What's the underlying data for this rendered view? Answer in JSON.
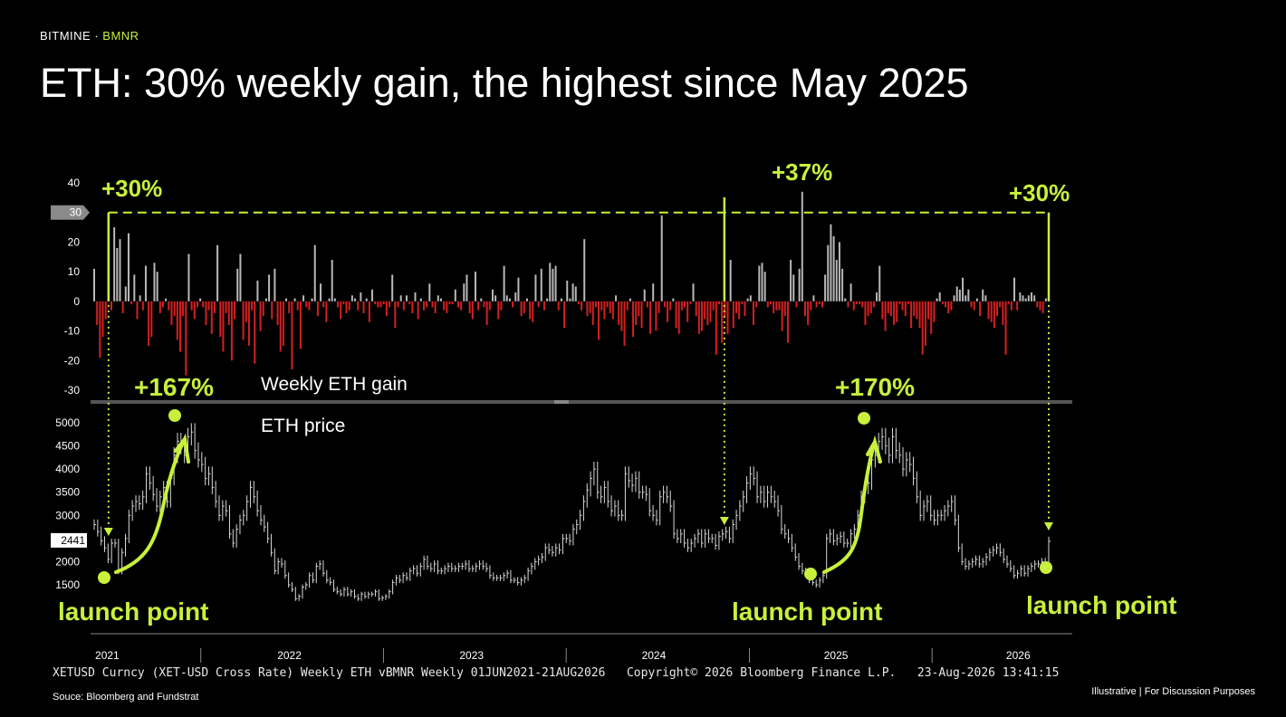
{
  "header": {
    "brand_primary": "BITMINE",
    "brand_separator": " · ",
    "brand_ticker": "BMNR",
    "title": "ETH: 30% weekly gain, the highest since May 2025"
  },
  "footer": {
    "bloomberg_line_left": "XETUSD Curncy (XET-USD Cross Rate) Weekly ETH vBMNR Weekly 01JUN2021-21AUG2026",
    "bloomberg_copyright": "Copyright© 2026 Bloomberg Finance L.P.",
    "bloomberg_timestamp": "23-Aug-2026 13:41:15",
    "source": "Souce: Bloomberg and Fundstrat",
    "disclaimer": "Illustrative  |  For Discussion Purposes"
  },
  "colors": {
    "background": "#000000",
    "accent": "#c8f03c",
    "gain_bar": "#b8b8b8",
    "loss_bar": "#d42020",
    "price_line": "#d8d8d8",
    "divider": "#555555"
  },
  "chart_data": [
    {
      "type": "bar",
      "panel_label": "Weekly ETH gain",
      "ylim": [
        -30,
        40
      ],
      "yticks": [
        40,
        30,
        20,
        10,
        0,
        -10,
        -20,
        -30
      ],
      "highlight_tick": "30",
      "x_range": [
        "2021-06-01",
        "2026-08-21"
      ],
      "series": [
        {
          "values": [
            11,
            -8,
            -19,
            -12,
            -6,
            30,
            -3,
            25,
            18,
            21,
            -4,
            5,
            23,
            -1,
            9,
            -6,
            2,
            -3,
            12,
            -15,
            -12,
            13,
            10,
            -4,
            -2,
            1,
            -3,
            -8,
            -5,
            -13,
            -17,
            -5,
            -25,
            16,
            -3,
            -6,
            -2,
            1,
            -2,
            -8,
            -3,
            -11,
            -4,
            19,
            -12,
            -17,
            -4,
            -8,
            -20,
            -6,
            11,
            16,
            -13,
            -7,
            -15,
            -3,
            -21,
            7,
            -10,
            -5,
            1,
            9,
            -6,
            11,
            -8,
            -17,
            -15,
            1,
            -4,
            -23,
            1,
            -3,
            -16,
            2,
            -2,
            -3,
            1,
            19,
            -5,
            6,
            -2,
            -7,
            1,
            14,
            1,
            -2,
            -6,
            -1,
            -4,
            -3,
            2,
            1,
            -3,
            3,
            -4,
            1,
            -7,
            4,
            -1,
            -2,
            -2,
            -1,
            -5,
            -2,
            9,
            -9,
            -2,
            2,
            -3,
            2,
            -1,
            -4,
            3,
            -6,
            1,
            -3,
            -2,
            6,
            -2,
            -4,
            2,
            1,
            -3,
            -4,
            -1,
            -1,
            4,
            -2,
            -3,
            6,
            9,
            -4,
            -6,
            10,
            -3,
            1,
            -2,
            -8,
            -3,
            4,
            2,
            -6,
            -3,
            12,
            2,
            1,
            -2,
            3,
            8,
            -5,
            -4,
            1,
            -6,
            -7,
            9,
            -2,
            11,
            -3,
            1,
            13,
            11,
            12,
            -3,
            1,
            -9,
            7,
            1,
            6,
            5,
            -1,
            -3,
            21,
            -5,
            -4,
            -8,
            -2,
            -13,
            -3,
            -6,
            -2,
            -4,
            -6,
            2,
            -8,
            -10,
            -15,
            -3,
            1,
            -12,
            -8,
            -5,
            -9,
            4,
            -2,
            -11,
            6,
            -10,
            -4,
            29,
            -2,
            -7,
            -3,
            1,
            -9,
            -11,
            -3,
            -2,
            -7,
            -1,
            6,
            -5,
            -11,
            -10,
            -6,
            -8,
            -7,
            -3,
            -18,
            -1,
            -14,
            -5,
            -11,
            14,
            -9,
            -4,
            -6,
            -1,
            -5,
            1,
            2,
            -8,
            -2,
            12,
            13,
            10,
            -2,
            -1,
            -4,
            -3,
            -3,
            -10,
            -5,
            -14,
            14,
            9,
            -2,
            11,
            37,
            -5,
            -8,
            -3,
            2,
            -2,
            -1,
            -2,
            9,
            19,
            26,
            22,
            14,
            20,
            11,
            1,
            -2,
            6,
            -3,
            -1,
            -1,
            -2,
            -8,
            -5,
            -4,
            -2,
            3,
            12,
            -6,
            -10,
            -4,
            -5,
            -8,
            -7,
            -1,
            -3,
            -5,
            -1,
            -9,
            -5,
            -6,
            -9,
            -18,
            -15,
            -6,
            -11,
            -7,
            1,
            3,
            -1,
            -2,
            -4,
            -3,
            2,
            5,
            4,
            8,
            2,
            4,
            -2,
            -3,
            1,
            -5,
            4,
            2,
            -6,
            -7,
            -9,
            -5,
            -2,
            -8,
            -18,
            -1,
            -3,
            8,
            -3,
            3,
            2,
            1,
            2,
            3,
            2,
            -2,
            -3,
            -4,
            1,
            30
          ]
        }
      ],
      "annotations": [
        {
          "text": "+30%",
          "date": "2021-07-05",
          "value": 30
        },
        {
          "text": "+37%",
          "date": "2024-11-11",
          "value": 37
        },
        {
          "text": "+30%",
          "date": "2026-08-21",
          "value": 30
        }
      ]
    },
    {
      "type": "line",
      "panel_label": "ETH price",
      "ylim": [
        1500,
        5000
      ],
      "yticks": [
        5000,
        4500,
        4000,
        3500,
        3000,
        2500,
        2000,
        1500
      ],
      "last_value_tag": "2441",
      "x_tick_labels": [
        "2021",
        "2022",
        "2023",
        "2024",
        "2025",
        "2026"
      ],
      "x_tick_dates": [
        "2021-06-27",
        "2022-06-26",
        "2023-06-25",
        "2024-06-23",
        "2025-06-22",
        "2026-06-21"
      ],
      "x_separator_dates": [
        "2021-12-31",
        "2022-12-31",
        "2023-12-31",
        "2024-12-31",
        "2025-12-31"
      ],
      "series": [
        {
          "values": [
            2800,
            2650,
            2450,
            2300,
            2050,
            2400,
            2400,
            1800,
            2200,
            2500,
            3000,
            3200,
            3300,
            3250,
            3400,
            3900,
            3700,
            3450,
            3200,
            3400,
            3600,
            3300,
            3800,
            4300,
            4600,
            4500,
            4300,
            4700,
            4800,
            4400,
            4200,
            4100,
            3800,
            3900,
            3600,
            3300,
            3000,
            3200,
            3100,
            2600,
            2400,
            2700,
            2900,
            3000,
            3300,
            3600,
            3400,
            3100,
            2900,
            2750,
            2500,
            2200,
            1800,
            2000,
            1950,
            1700,
            1500,
            1400,
            1200,
            1250,
            1450,
            1500,
            1700,
            1600,
            1900,
            1950,
            1750,
            1600,
            1550,
            1400,
            1350,
            1300,
            1400,
            1300,
            1350,
            1250,
            1200,
            1300,
            1250,
            1300,
            1300,
            1350,
            1200,
            1220,
            1250,
            1350,
            1550,
            1650,
            1600,
            1700,
            1650,
            1800,
            1850,
            1750,
            1900,
            2050,
            1900,
            1850,
            1950,
            1800,
            1800,
            1850,
            1900,
            1850,
            1850,
            1900,
            1900,
            1950,
            1850,
            1850,
            1900,
            1950,
            1900,
            1850,
            1700,
            1650,
            1650,
            1650,
            1700,
            1750,
            1600,
            1600,
            1550,
            1600,
            1650,
            1800,
            1900,
            2000,
            2050,
            2100,
            2300,
            2250,
            2200,
            2300,
            2250,
            2500,
            2500,
            2450,
            2700,
            2800,
            3000,
            3300,
            3550,
            3800,
            4000,
            3500,
            3400,
            3600,
            3300,
            3100,
            3200,
            3000,
            3000,
            3900,
            3750,
            3650,
            3800,
            3500,
            3500,
            3450,
            3100,
            3000,
            2900,
            3400,
            3500,
            3400,
            3200,
            2600,
            2500,
            2600,
            2400,
            2300,
            2400,
            2500,
            2600,
            2400,
            2600,
            2500,
            2500,
            2350,
            2550,
            2600,
            2650,
            2500,
            2800,
            3000,
            3200,
            3400,
            3700,
            3900,
            3800,
            3400,
            3500,
            3300,
            3500,
            3400,
            3300,
            3100,
            2700,
            2600,
            2500,
            2300,
            2100,
            1900,
            1800,
            1750,
            1600,
            1550,
            1500,
            1600,
            1700,
            2500,
            2600,
            2450,
            2500,
            2550,
            2400,
            2400,
            2600,
            2700,
            3000,
            3400,
            3600,
            3700,
            4200,
            4300,
            4600,
            4700,
            4500,
            4300,
            4700,
            4400,
            4300,
            4000,
            4200,
            4100,
            3800,
            3400,
            3000,
            3200,
            3300,
            3000,
            2900,
            3000,
            3000,
            3100,
            3200,
            3300,
            2900,
            2300,
            2000,
            1900,
            1950,
            2000,
            2050,
            1950,
            2000,
            2100,
            2200,
            2250,
            2300,
            2200,
            2050,
            1950,
            1850,
            1700,
            1750,
            1850,
            1750,
            1850,
            1900,
            1950,
            1950,
            2000,
            1950,
            2441
          ]
        }
      ],
      "annotations": [
        {
          "text": "+167%",
          "from": "launch point",
          "to": "peak"
        },
        {
          "text": "+170%",
          "from": "launch point",
          "to": "peak"
        },
        {
          "text": "launch point",
          "date": "2021-07-05"
        },
        {
          "text": "launch point",
          "date": "2024-11-11"
        },
        {
          "text": "launch point",
          "date": "2026-08-21"
        }
      ]
    }
  ]
}
